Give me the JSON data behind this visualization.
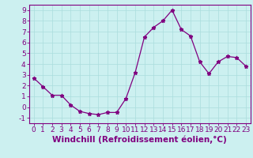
{
  "x": [
    0,
    1,
    2,
    3,
    4,
    5,
    6,
    7,
    8,
    9,
    10,
    11,
    12,
    13,
    14,
    15,
    16,
    17,
    18,
    19,
    20,
    21,
    22,
    23
  ],
  "y": [
    2.7,
    1.9,
    1.1,
    1.1,
    0.2,
    -0.4,
    -0.6,
    -0.7,
    -0.5,
    -0.5,
    0.8,
    3.2,
    6.5,
    7.4,
    8.0,
    9.0,
    7.2,
    6.6,
    4.2,
    3.1,
    4.2,
    4.7,
    4.6,
    3.8
  ],
  "line_color": "#800080",
  "marker": "*",
  "marker_size": 3.5,
  "bg_color": "#ccf0f0",
  "grid_color": "#aadddd",
  "xlabel": "Windchill (Refroidissement éolien,°C)",
  "xlabel_fontsize": 7.5,
  "xlim": [
    -0.5,
    23.5
  ],
  "ylim": [
    -1.5,
    9.5
  ],
  "yticks": [
    -1,
    0,
    1,
    2,
    3,
    4,
    5,
    6,
    7,
    8,
    9
  ],
  "xticks": [
    0,
    1,
    2,
    3,
    4,
    5,
    6,
    7,
    8,
    9,
    10,
    11,
    12,
    13,
    14,
    15,
    16,
    17,
    18,
    19,
    20,
    21,
    22,
    23
  ],
  "tick_fontsize": 6.5,
  "spine_color": "#800080"
}
